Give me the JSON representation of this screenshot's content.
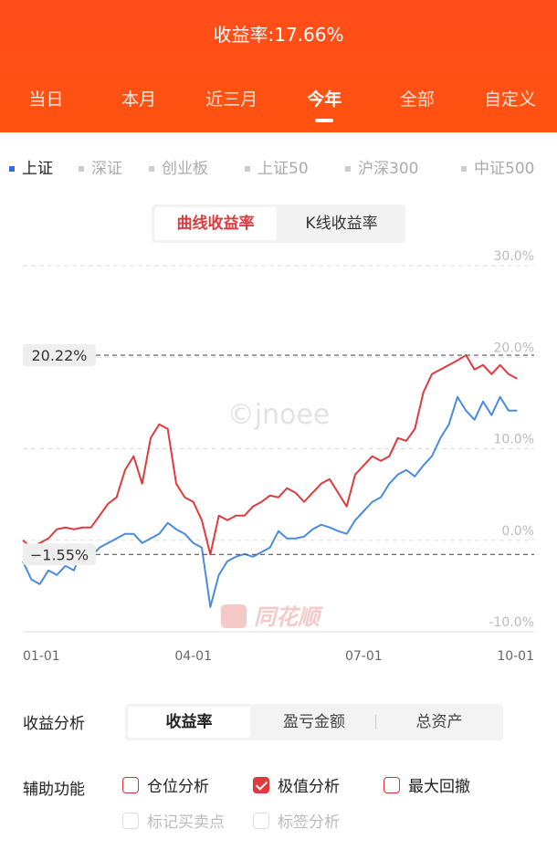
{
  "header": {
    "title": "收益率:17.66%"
  },
  "tabs": {
    "items": [
      "当日",
      "本月",
      "近三月",
      "今年",
      "全部",
      "自定义"
    ],
    "active": 3
  },
  "indices": {
    "items": [
      "上证",
      "深证",
      "创业板",
      "上证50",
      "沪深300",
      "中证500"
    ],
    "active": 0
  },
  "toggle": {
    "items": [
      "曲线收益率",
      "K线收益率"
    ],
    "active": 0
  },
  "chart_data": {
    "type": "line",
    "categories": [
      "01-01",
      null,
      null,
      null,
      null,
      null,
      null,
      null,
      null,
      null,
      null,
      null,
      null,
      null,
      null,
      null,
      null,
      null,
      null,
      null,
      "04-01",
      null,
      null,
      null,
      null,
      null,
      null,
      null,
      null,
      null,
      null,
      null,
      null,
      null,
      null,
      null,
      null,
      null,
      null,
      null,
      "07-01",
      null,
      null,
      null,
      null,
      null,
      null,
      null,
      null,
      null,
      null,
      null,
      null,
      null,
      null,
      null,
      null,
      null,
      null,
      null,
      "10-01"
    ],
    "series": [
      {
        "color": "#e03a3e",
        "values": [
          0,
          -0.8,
          -0.3,
          0.2,
          1.2,
          1.4,
          1.2,
          1.4,
          1.4,
          2.69,
          3.99,
          4.69,
          7.68,
          9.18,
          6.18,
          11.17,
          12.67,
          12.17,
          6.18,
          4.69,
          4.19,
          2.19,
          -1.55,
          2.69,
          2.19,
          2.69,
          2.69,
          3.69,
          4.19,
          4.89,
          4.69,
          5.69,
          5.19,
          4.19,
          5.19,
          6.18,
          6.68,
          5.19,
          3.69,
          7.18,
          8.18,
          9.18,
          8.68,
          9.18,
          11.17,
          10.87,
          12.17,
          16.16,
          18.15,
          18.65,
          19.15,
          19.65,
          20.22,
          18.65,
          19.15,
          18.15,
          19.15,
          18.15,
          17.66,
          null,
          null
        ]
      },
      {
        "color": "#4a8ae0",
        "values": [
          -2.29,
          -4.29,
          -4.79,
          -3.29,
          -3.79,
          -2.79,
          -3.29,
          -0.8,
          -1.8,
          -0.8,
          -0.3,
          0.2,
          0.7,
          0.7,
          -0.3,
          0.2,
          0.7,
          1.9,
          1.2,
          0.7,
          -0.3,
          -0.8,
          -7.28,
          -3.79,
          -2.29,
          -1.8,
          -1.5,
          -1.8,
          -1.3,
          -0.8,
          1.0,
          0.2,
          0.2,
          0.4,
          1.2,
          1.7,
          1.4,
          1.0,
          0.7,
          2.19,
          3.19,
          4.19,
          4.69,
          6.18,
          7.18,
          7.68,
          6.98,
          8.18,
          9.18,
          11.17,
          12.67,
          15.66,
          14.16,
          13.17,
          15.16,
          13.67,
          15.66,
          14.16,
          14.16,
          null,
          null
        ]
      }
    ],
    "ylim": [
      -10,
      30
    ],
    "yticks": [
      {
        "value": -10,
        "label": "-10.0%"
      },
      {
        "value": 0,
        "label": "0.0%"
      },
      {
        "value": 10,
        "label": "10.0%"
      },
      {
        "value": 20,
        "label": "20.0%"
      },
      {
        "value": 30,
        "label": "30.0%"
      }
    ],
    "grid": true,
    "annotations": [
      {
        "value": 20.22,
        "label": "20.22%"
      },
      {
        "value": -1.55,
        "label": "−1.55%"
      }
    ],
    "watermarks": [
      "©jnoee",
      "同花顺"
    ]
  },
  "analysis": {
    "label": "收益分析",
    "items": [
      "收益率",
      "盈亏金额",
      "总资产"
    ],
    "active": 0
  },
  "aux": {
    "label": "辅助功能",
    "items": [
      {
        "label": "仓位分析",
        "checked": false,
        "disabled": false
      },
      {
        "label": "极值分析",
        "checked": true,
        "disabled": false
      },
      {
        "label": "最大回撤",
        "checked": false,
        "disabled": false
      },
      {
        "label": "标记买卖点",
        "checked": false,
        "disabled": true
      },
      {
        "label": "标签分析",
        "checked": false,
        "disabled": true
      }
    ]
  }
}
